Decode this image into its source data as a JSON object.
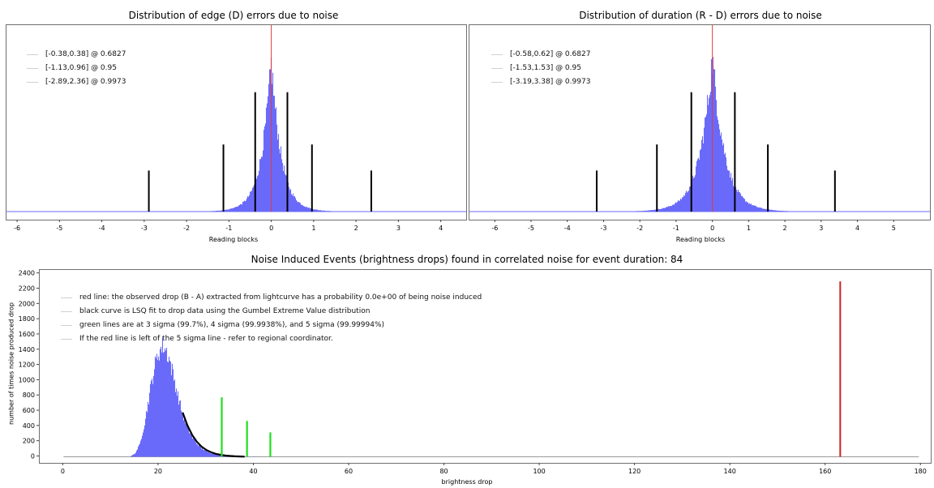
{
  "chart_data": [
    {
      "type": "histogram",
      "title": "Distribution of edge (D) errors due to noise",
      "xlabel": "Reading blocks",
      "xlim": [
        -6.25,
        4.6
      ],
      "x_ticks": [
        "-6",
        "-5",
        "-4",
        "-3",
        "-2",
        "-1",
        "0",
        "1",
        "2",
        "3",
        "4"
      ],
      "bar_color": "#6a6afa",
      "distribution": {
        "center": 0.0,
        "sigma": 0.42,
        "shape": "laplace-like",
        "peak_fraction": 0.8
      },
      "red_line_x": 0,
      "black_lines": [
        {
          "x": -0.38,
          "height": 0.64
        },
        {
          "x": 0.38,
          "height": 0.64
        },
        {
          "x": -1.13,
          "height": 0.36
        },
        {
          "x": 0.96,
          "height": 0.36
        },
        {
          "x": -2.89,
          "height": 0.22
        },
        {
          "x": 2.36,
          "height": 0.22
        }
      ],
      "legend": [
        {
          "label": "[-0.38,0.38] @ 0.6827"
        },
        {
          "label": "[-1.13,0.96] @ 0.95"
        },
        {
          "label": "[-2.89,2.36] @ 0.9973"
        }
      ]
    },
    {
      "type": "histogram",
      "title": "Distribution of duration (R - D) errors due to noise",
      "xlabel": "Reading blocks",
      "xlim": [
        -6.7,
        6.0
      ],
      "x_ticks": [
        "-6",
        "-5",
        "-4",
        "-3",
        "-2",
        "-1",
        "0",
        "1",
        "2",
        "3",
        "4",
        "5"
      ],
      "bar_color": "#6a6afa",
      "distribution": {
        "center": 0.0,
        "sigma": 0.62,
        "shape": "laplace-like",
        "peak_fraction": 0.82
      },
      "red_line_x": 0,
      "black_lines": [
        {
          "x": -0.58,
          "height": 0.64
        },
        {
          "x": 0.62,
          "height": 0.64
        },
        {
          "x": -1.53,
          "height": 0.36
        },
        {
          "x": 1.53,
          "height": 0.36
        },
        {
          "x": -3.19,
          "height": 0.22
        },
        {
          "x": 3.38,
          "height": 0.22
        }
      ],
      "legend": [
        {
          "label": "[-0.58,0.62] @ 0.6827"
        },
        {
          "label": "[-1.53,1.53] @ 0.95"
        },
        {
          "label": "[-3.19,3.38] @ 0.9973"
        }
      ]
    },
    {
      "type": "histogram",
      "title": "Noise Induced Events (brightness drops) found in correlated noise for event duration: 84",
      "xlabel": "brightness drop",
      "ylabel": "number of times noise produced drop",
      "xlim": [
        -5,
        182
      ],
      "ylim": [
        -80,
        2450
      ],
      "x_ticks": [
        0,
        20,
        40,
        60,
        80,
        100,
        120,
        140,
        160,
        180
      ],
      "y_ticks": [
        0,
        200,
        400,
        600,
        800,
        1000,
        1200,
        1400,
        1600,
        1800,
        2000,
        2200,
        2400
      ],
      "bar_color": "#6a6afa",
      "histogram": [
        {
          "x": 14,
          "y": 5
        },
        {
          "x": 15,
          "y": 40
        },
        {
          "x": 16,
          "y": 160
        },
        {
          "x": 17,
          "y": 430
        },
        {
          "x": 18,
          "y": 800
        },
        {
          "x": 19,
          "y": 1150
        },
        {
          "x": 20,
          "y": 1380
        },
        {
          "x": 21,
          "y": 1460
        },
        {
          "x": 22,
          "y": 1330
        },
        {
          "x": 23,
          "y": 1080
        },
        {
          "x": 24,
          "y": 800
        },
        {
          "x": 25,
          "y": 560
        },
        {
          "x": 26,
          "y": 380
        },
        {
          "x": 27,
          "y": 255
        },
        {
          "x": 28,
          "y": 170
        },
        {
          "x": 29,
          "y": 110
        },
        {
          "x": 30,
          "y": 72
        },
        {
          "x": 31,
          "y": 47
        },
        {
          "x": 32,
          "y": 30
        },
        {
          "x": 33,
          "y": 19
        },
        {
          "x": 34,
          "y": 12
        },
        {
          "x": 35,
          "y": 8
        },
        {
          "x": 36,
          "y": 5
        },
        {
          "x": 37,
          "y": 3
        },
        {
          "x": 38,
          "y": 2
        },
        {
          "x": 39,
          "y": 1
        },
        {
          "x": 40,
          "y": 1
        },
        {
          "x": 41,
          "y": 1
        }
      ],
      "fit_curve": [
        {
          "x": 25,
          "y": 580
        },
        {
          "x": 26,
          "y": 410
        },
        {
          "x": 27,
          "y": 285
        },
        {
          "x": 28,
          "y": 195
        },
        {
          "x": 29,
          "y": 132
        },
        {
          "x": 30,
          "y": 88
        },
        {
          "x": 31,
          "y": 58
        },
        {
          "x": 32,
          "y": 38
        },
        {
          "x": 33,
          "y": 25
        },
        {
          "x": 34,
          "y": 16
        },
        {
          "x": 35,
          "y": 10
        },
        {
          "x": 36,
          "y": 6
        },
        {
          "x": 37,
          "y": 4
        },
        {
          "x": 38,
          "y": 2
        }
      ],
      "green_lines": [
        {
          "x": 33.2,
          "y": 780
        },
        {
          "x": 38.5,
          "y": 470
        },
        {
          "x": 43.4,
          "y": 320
        }
      ],
      "red_line": {
        "x": 163,
        "y": 2300
      },
      "legend": [
        {
          "label": "red line: the observed drop (B - A) extracted from lightcurve has a probability 0.0e+00 of being noise induced"
        },
        {
          "label": "black curve is LSQ fit to drop data using the Gumbel Extreme Value distribution"
        },
        {
          "label": "green lines are at 3 sigma (99.7%), 4 sigma (99.9938%), and 5 sigma (99.99994%)"
        },
        {
          "label": "If the red line is left of the 5 sigma line - refer to regional coordinator."
        }
      ]
    }
  ]
}
